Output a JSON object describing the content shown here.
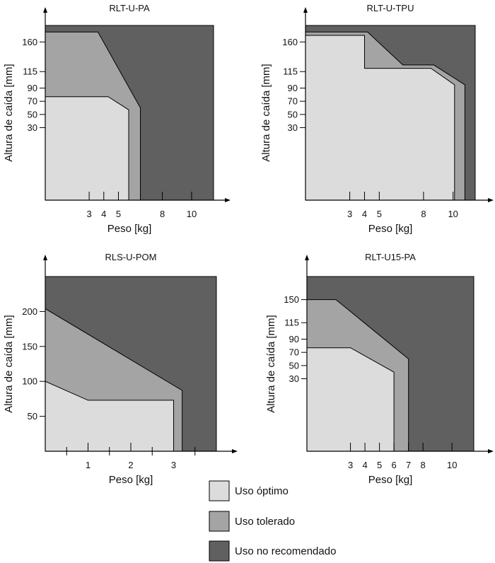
{
  "colors": {
    "optimo": "#dcdcdc",
    "tolerado": "#a4a4a4",
    "no_recomendado": "#606060"
  },
  "legend": {
    "items": [
      {
        "key": "optimo",
        "label": "Uso óptimo"
      },
      {
        "key": "tolerado",
        "label": "Uso tolerado"
      },
      {
        "key": "no_recomendado",
        "label": "Uso no recomendado"
      }
    ]
  },
  "chart_data": [
    {
      "type": "area",
      "title": "RLT-U-PA",
      "xlabel": "Peso [kg]",
      "ylabel": "Altura de caída [mm]",
      "xlim": [
        0,
        11.5
      ],
      "ylim": [
        -80,
        185
      ],
      "x_ticks": [
        3,
        4,
        5,
        8,
        10
      ],
      "y_ticks": [
        30,
        50,
        70,
        90,
        115,
        160
      ],
      "regions": [
        {
          "key": "no_recomendado",
          "points": [
            [
              0,
              -80
            ],
            [
              11.5,
              -80
            ],
            [
              11.5,
              185
            ],
            [
              0,
              185
            ]
          ]
        },
        {
          "key": "tolerado",
          "points": [
            [
              0,
              -80
            ],
            [
              6.5,
              -80
            ],
            [
              6.5,
              60
            ],
            [
              3.6,
              175
            ],
            [
              0,
              175
            ]
          ]
        },
        {
          "key": "optimo",
          "points": [
            [
              0,
              -80
            ],
            [
              5.7,
              -80
            ],
            [
              5.7,
              57
            ],
            [
              4.3,
              77
            ],
            [
              0,
              77
            ]
          ]
        }
      ]
    },
    {
      "type": "area",
      "title": "RLT-U-TPU",
      "xlabel": "Peso [kg]",
      "ylabel": "Altura de caída [mm]",
      "xlim": [
        0,
        11.5
      ],
      "ylim": [
        -80,
        185
      ],
      "x_ticks": [
        3,
        4,
        5,
        8,
        10
      ],
      "y_ticks": [
        30,
        50,
        70,
        90,
        115,
        160
      ],
      "regions": [
        {
          "key": "no_recomendado",
          "points": [
            [
              0,
              -80
            ],
            [
              11.5,
              -80
            ],
            [
              11.5,
              185
            ],
            [
              0,
              185
            ]
          ]
        },
        {
          "key": "tolerado",
          "points": [
            [
              0,
              -80
            ],
            [
              10.8,
              -80
            ],
            [
              10.8,
              95
            ],
            [
              8.7,
              125
            ],
            [
              6.6,
              125
            ],
            [
              4.2,
              175
            ],
            [
              0,
              175
            ]
          ]
        },
        {
          "key": "optimo",
          "points": [
            [
              0,
              -80
            ],
            [
              10.1,
              -80
            ],
            [
              10.1,
              95
            ],
            [
              8.5,
              120
            ],
            [
              4,
              120
            ],
            [
              4,
              170
            ],
            [
              0,
              170
            ]
          ]
        }
      ]
    },
    {
      "type": "area",
      "title": "RLS-U-POM",
      "xlabel": "Peso [kg]",
      "ylabel": "Altura de caída [mm]",
      "xlim": [
        0,
        4
      ],
      "ylim": [
        0,
        250
      ],
      "x_ticks": [
        1,
        2,
        3
      ],
      "y_ticks": [
        50,
        100,
        150,
        200
      ],
      "regions": [
        {
          "key": "no_recomendado",
          "points": [
            [
              0,
              0
            ],
            [
              4,
              0
            ],
            [
              4,
              250
            ],
            [
              0,
              250
            ]
          ]
        },
        {
          "key": "tolerado",
          "points": [
            [
              0,
              0
            ],
            [
              3.2,
              0
            ],
            [
              3.2,
              87
            ],
            [
              0,
              204
            ]
          ]
        },
        {
          "key": "optimo",
          "points": [
            [
              0,
              0
            ],
            [
              3,
              0
            ],
            [
              3,
              73
            ],
            [
              1,
              73
            ],
            [
              0,
              100
            ]
          ]
        }
      ]
    },
    {
      "type": "area",
      "title": "RLT-U15-PA",
      "xlabel": "Peso [kg]",
      "ylabel": "Altura de caída [mm]",
      "xlim": [
        0,
        11.5
      ],
      "ylim": [
        -80,
        185
      ],
      "x_ticks": [
        3,
        4,
        5,
        6,
        7,
        8,
        10
      ],
      "y_ticks": [
        30,
        50,
        70,
        90,
        115,
        150
      ],
      "regions": [
        {
          "key": "no_recomendado",
          "points": [
            [
              0,
              -80
            ],
            [
              11.5,
              -80
            ],
            [
              11.5,
              185
            ],
            [
              0,
              185
            ]
          ]
        },
        {
          "key": "tolerado",
          "points": [
            [
              0,
              -80
            ],
            [
              7,
              -80
            ],
            [
              7,
              60
            ],
            [
              2,
              150
            ],
            [
              0,
              150
            ]
          ]
        },
        {
          "key": "optimo",
          "points": [
            [
              0,
              -80
            ],
            [
              6,
              -80
            ],
            [
              6,
              40
            ],
            [
              3,
              77
            ],
            [
              0,
              77
            ]
          ]
        }
      ]
    }
  ]
}
